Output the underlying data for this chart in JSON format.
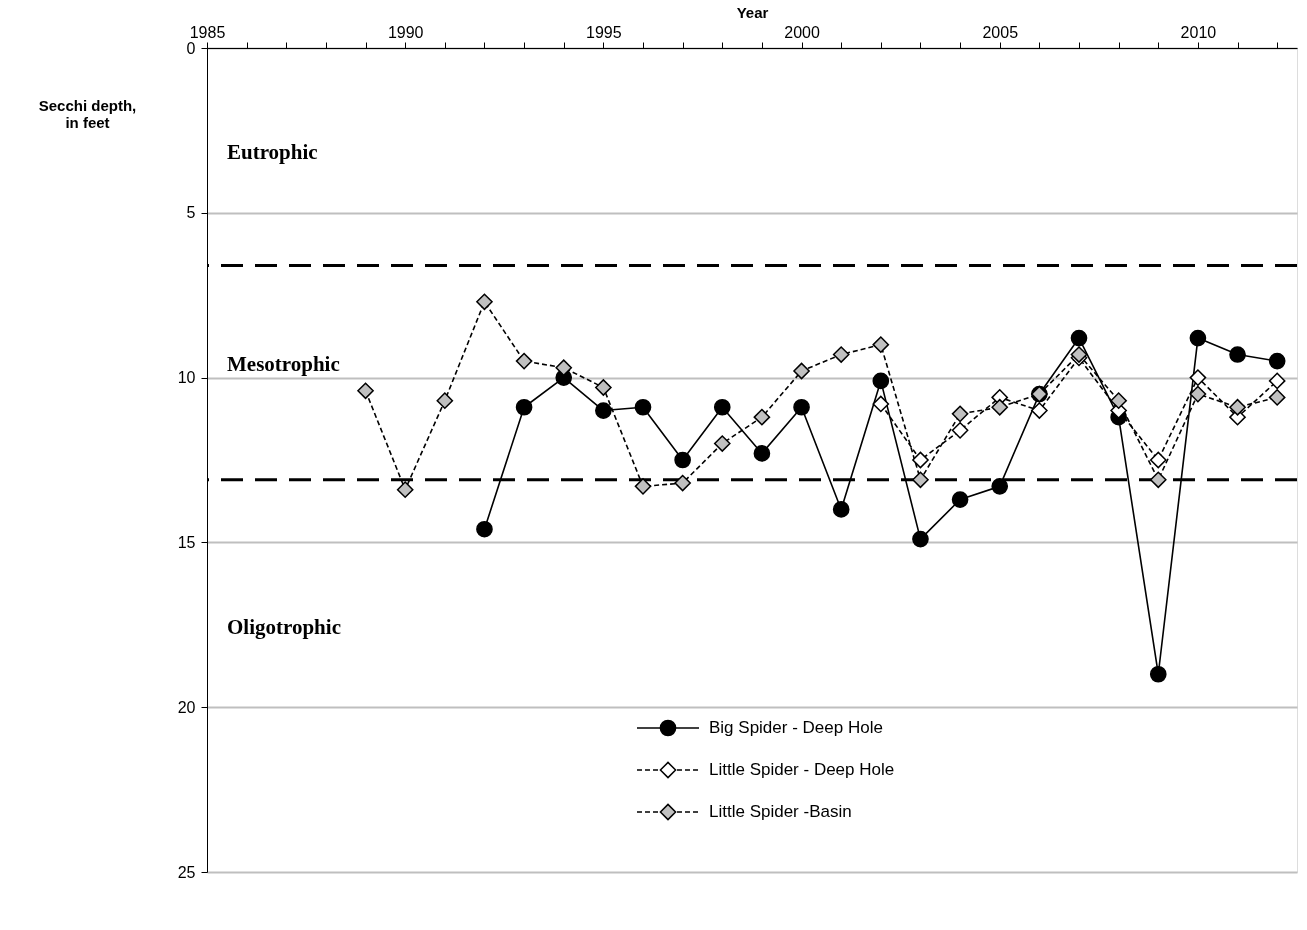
{
  "chart_data": {
    "type": "line",
    "xlabel": "Year",
    "ylabel": "Secchi depth, in feet",
    "xlim": [
      1985,
      2012.5
    ],
    "ylim": [
      25,
      0
    ],
    "xticks": [
      1985,
      {
        "value": 1986,
        "label": null
      },
      {
        "value": 1987,
        "label": null
      },
      {
        "value": 1988,
        "label": null
      },
      {
        "value": 1989,
        "label": null
      },
      1990,
      {
        "value": 1991,
        "label": null
      },
      {
        "value": 1992,
        "label": null
      },
      {
        "value": 1993,
        "label": null
      },
      {
        "value": 1994,
        "label": null
      },
      1995,
      {
        "value": 1996,
        "label": null
      },
      {
        "value": 1997,
        "label": null
      },
      {
        "value": 1998,
        "label": null
      },
      {
        "value": 1999,
        "label": null
      },
      2000,
      {
        "value": 2001,
        "label": null
      },
      {
        "value": 2002,
        "label": null
      },
      {
        "value": 2003,
        "label": null
      },
      {
        "value": 2004,
        "label": null
      },
      2005,
      {
        "value": 2006,
        "label": null
      },
      {
        "value": 2007,
        "label": null
      },
      {
        "value": 2008,
        "label": null
      },
      {
        "value": 2009,
        "label": null
      },
      2010,
      {
        "value": 2011,
        "label": null
      },
      {
        "value": 2012,
        "label": null
      }
    ],
    "yticks": [
      0,
      5,
      10,
      15,
      20,
      25
    ],
    "grid": "y",
    "legend": "bottom",
    "series": [
      {
        "name": "Big Spider - Deep Hole",
        "color": "#000000",
        "marker": "circle",
        "line_style": "solid",
        "x": [
          1992,
          1993,
          1994,
          1995,
          1996,
          1997,
          1998,
          1999,
          2000,
          2001,
          2002,
          2003,
          2004,
          2005,
          2006,
          2007,
          2008,
          2009,
          2010,
          2011,
          2012
        ],
        "values": [
          14.6,
          10.9,
          10.0,
          11.0,
          10.9,
          12.5,
          10.9,
          12.3,
          10.9,
          14.0,
          10.1,
          14.9,
          13.7,
          13.3,
          10.5,
          8.8,
          11.2,
          19.0,
          8.8,
          9.3,
          9.5
        ]
      },
      {
        "name": "Little Spider - Deep Hole",
        "color": "#ffffff",
        "marker": "diamond",
        "line_style": "dashed",
        "x": [
          2002,
          2003,
          2004,
          2005,
          2006,
          2007,
          2008,
          2009,
          2010,
          2011,
          2012
        ],
        "values": [
          10.8,
          12.5,
          11.6,
          10.6,
          11.0,
          9.4,
          11.0,
          12.5,
          10.0,
          11.2,
          10.1
        ]
      },
      {
        "name": "Little Spider -Basin",
        "color": "#c0c0c0",
        "marker": "diamond",
        "line_style": "dashed",
        "x": [
          1989,
          1990,
          1991,
          1992,
          1993,
          1994,
          1995,
          1996,
          1997,
          1998,
          1999,
          2000,
          2001,
          2002,
          2003,
          2004,
          2005,
          2006,
          2007,
          2008,
          2009,
          2010,
          2011,
          2012
        ],
        "values": [
          10.4,
          13.4,
          10.7,
          7.7,
          9.5,
          9.7,
          10.3,
          13.3,
          13.2,
          12.0,
          11.2,
          9.8,
          9.3,
          9.0,
          13.1,
          11.1,
          10.9,
          10.5,
          9.3,
          10.7,
          13.1,
          10.5,
          10.9,
          10.6
        ]
      }
    ],
    "ref_lines": [
      {
        "axis": "y",
        "value": 6.6,
        "line_style": "dashed",
        "color": "#000000"
      },
      {
        "axis": "y",
        "value": 13.1,
        "line_style": "dashed",
        "color": "#000000"
      }
    ],
    "annotations": [
      "Eutrophic",
      "Mesotrophic",
      "Oligotrophic"
    ]
  }
}
